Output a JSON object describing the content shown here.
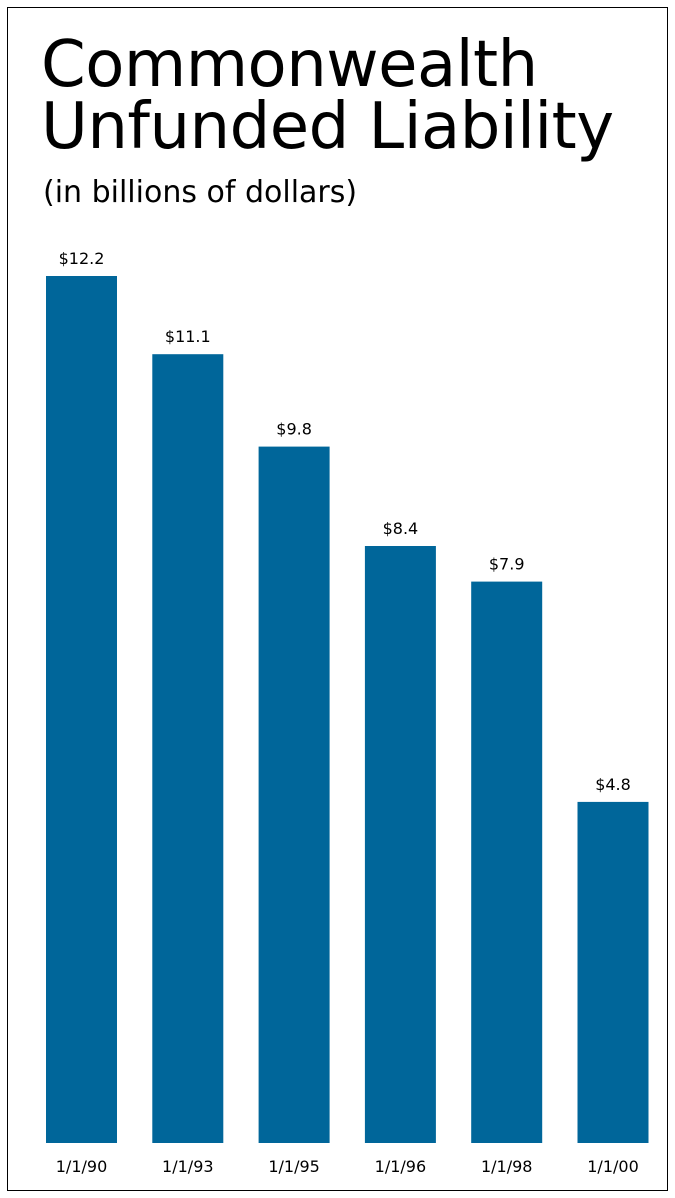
{
  "chart_data": {
    "type": "bar",
    "title": [
      "Commonwealth",
      "Unfunded Liability"
    ],
    "subtitle": "(in billions of dollars)",
    "categories": [
      "1/1/90",
      "1/1/93",
      "1/1/95",
      "1/1/96",
      "1/1/98",
      "1/1/00"
    ],
    "values": [
      12.2,
      11.1,
      9.8,
      8.4,
      7.9,
      4.8
    ],
    "value_labels": [
      "$12.2",
      "$11.1",
      "$9.8",
      "$8.4",
      "$7.9",
      "$4.8"
    ],
    "bar_color": "#00669a",
    "xlabel": "",
    "ylabel": "",
    "ylim": [
      0,
      12.2
    ],
    "grid": false,
    "legend": "none"
  }
}
